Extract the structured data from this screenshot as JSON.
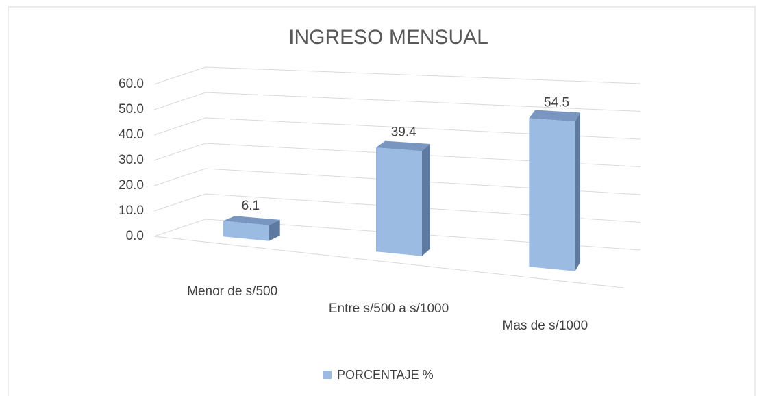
{
  "chart_data": {
    "type": "bar3d",
    "title": "INGRESO MENSUAL",
    "categories": [
      "Menor de s/500",
      "Entre s/500 a s/1000",
      "Mas de s/1000"
    ],
    "series": [
      {
        "name": "PORCENTAJE %",
        "color": "#9bbbe3",
        "values": [
          6.1,
          39.4,
          54.5
        ]
      }
    ],
    "ylim": [
      0,
      60
    ],
    "yticks": [
      {
        "value": 0,
        "label": "0.0"
      },
      {
        "value": 10,
        "label": "10.0"
      },
      {
        "value": 20,
        "label": "20.0"
      },
      {
        "value": 30,
        "label": "30.0"
      },
      {
        "value": 40,
        "label": "40.0"
      },
      {
        "value": 50,
        "label": "50.0"
      },
      {
        "value": 60,
        "label": "60.0"
      }
    ],
    "grid": true,
    "legend": "bottom"
  }
}
